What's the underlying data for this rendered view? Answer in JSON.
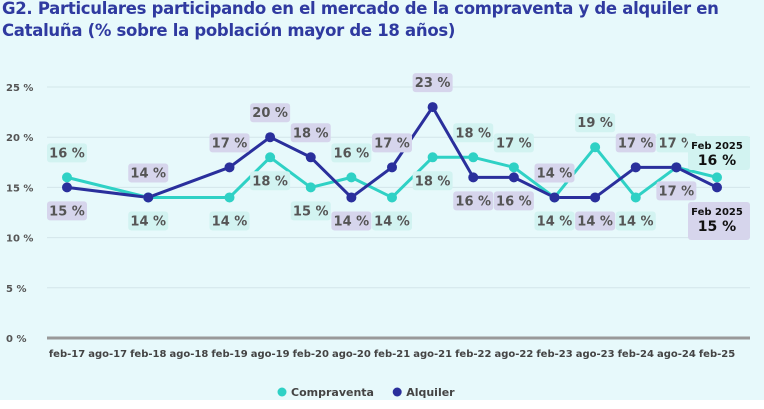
{
  "title": "G2. Particulares participando en el mercado de la compraventa y de alquiler en Cataluña (% sobre la población mayor de 18 años)",
  "chart_data": {
    "type": "line",
    "title": "G2. Particulares participando en el mercado de la compraventa y de alquiler en Cataluña (% sobre la población mayor de 18 años)",
    "categories": [
      "feb-17",
      "ago-17",
      "feb-18",
      "ago-18",
      "feb-19",
      "ago-19",
      "feb-20",
      "ago-20",
      "feb-21",
      "ago-21",
      "feb-22",
      "ago-22",
      "feb-23",
      "ago-23",
      "feb-24",
      "ago-24",
      "feb-25"
    ],
    "x": [
      "feb-17",
      "feb-18",
      "feb-19",
      "ago-19",
      "feb-20",
      "ago-20",
      "feb-21",
      "ago-21",
      "feb-22",
      "ago-22",
      "feb-23",
      "ago-23",
      "feb-24",
      "ago-24",
      "feb-25"
    ],
    "series": [
      {
        "name": "Compraventa",
        "color": "#2fd1c5",
        "values": [
          16,
          14,
          14,
          18,
          15,
          16,
          14,
          18,
          18,
          17,
          14,
          19,
          14,
          17,
          16
        ]
      },
      {
        "name": "Alquiler",
        "color": "#2a2f9c",
        "values": [
          15,
          14,
          17,
          20,
          18,
          14,
          17,
          23,
          16,
          16,
          14,
          14,
          17,
          17,
          15
        ]
      }
    ],
    "ylim": [
      0,
      25
    ],
    "yticks": [
      "0 %",
      "5 %",
      "10 %",
      "15 %",
      "20 %",
      "25 %"
    ],
    "unit": "%",
    "grid": true,
    "legend": "bottom-center",
    "callouts": [
      {
        "label": "Feb 2025",
        "value": "16 %",
        "series": "Compraventa"
      },
      {
        "label": "Feb 2025",
        "value": "15 %",
        "series": "Alquiler"
      }
    ]
  }
}
